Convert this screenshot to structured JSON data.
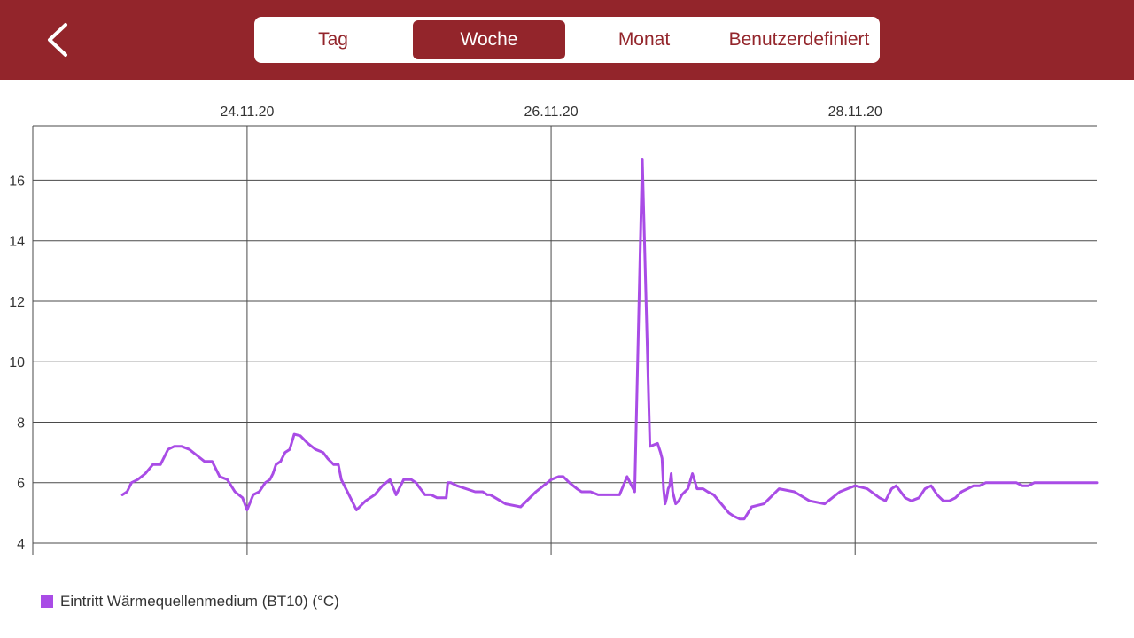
{
  "header": {
    "tabs": [
      {
        "label": "Tag",
        "active": false
      },
      {
        "label": "Woche",
        "active": true
      },
      {
        "label": "Monat",
        "active": false
      },
      {
        "label": "Benutzerdefiniert",
        "active": false
      }
    ],
    "back_icon": "chevron-left-icon"
  },
  "colors": {
    "header_bg": "#93252b",
    "series": "#a94ce6",
    "grid": "#4a4a4a"
  },
  "chart_data": {
    "type": "line",
    "title": "",
    "xlabel": "",
    "ylabel": "",
    "x_tick_labels": [
      "24.11.20",
      "26.11.20",
      "28.11.20"
    ],
    "x_tick_days": [
      1,
      3,
      5
    ],
    "xlim_days": [
      -0.41,
      6.59
    ],
    "ylim": [
      4,
      17.8
    ],
    "y_ticks": [
      4,
      6,
      8,
      10,
      12,
      14,
      16
    ],
    "grid": true,
    "legend_position": "bottom-left",
    "series": [
      {
        "name": "Eintritt Wärmequellenmedium (BT10) (°C)",
        "x_days": [
          0.18,
          0.21,
          0.24,
          0.28,
          0.33,
          0.38,
          0.43,
          0.48,
          0.52,
          0.57,
          0.62,
          0.67,
          0.72,
          0.77,
          0.82,
          0.87,
          0.92,
          0.97,
          1.0,
          1.04,
          1.08,
          1.12,
          1.15,
          1.17,
          1.19,
          1.22,
          1.25,
          1.28,
          1.31,
          1.35,
          1.4,
          1.45,
          1.5,
          1.53,
          1.57,
          1.6,
          1.62,
          1.64,
          1.67,
          1.72,
          1.78,
          1.84,
          1.89,
          1.94,
          1.98,
          2.03,
          2.05,
          2.08,
          2.11,
          2.14,
          2.17,
          2.21,
          2.25,
          2.28,
          2.31,
          2.32,
          2.34,
          2.38,
          2.44,
          2.5,
          2.55,
          2.58,
          2.6,
          2.7,
          2.8,
          2.9,
          3.0,
          3.05,
          3.08,
          3.12,
          3.17,
          3.2,
          3.26,
          3.31,
          3.35,
          3.4,
          3.45,
          3.5,
          3.55,
          3.6,
          3.65,
          3.7,
          3.72,
          3.73,
          3.74,
          3.75,
          3.76,
          3.77,
          3.78,
          3.79,
          3.8,
          3.82,
          3.84,
          3.86,
          3.9,
          3.93,
          3.96,
          3.98,
          4.0,
          4.03,
          4.07,
          4.12,
          4.17,
          4.2,
          4.22,
          4.24,
          4.27,
          4.32,
          4.4,
          4.5,
          4.6,
          4.7,
          4.8,
          4.9,
          5.0,
          5.08,
          5.16,
          5.2,
          5.24,
          5.27,
          5.3,
          5.33,
          5.37,
          5.42,
          5.46,
          5.5,
          5.54,
          5.58,
          5.62,
          5.66,
          5.7,
          5.74,
          5.78,
          5.82,
          5.86,
          5.9,
          5.94,
          5.98,
          6.02,
          6.06,
          6.1,
          6.14,
          6.18,
          6.22,
          6.26,
          6.3,
          6.4,
          6.5,
          6.59
        ],
        "y": [
          5.6,
          5.7,
          6.0,
          6.1,
          6.3,
          6.6,
          6.6,
          7.1,
          7.2,
          7.2,
          7.1,
          6.9,
          6.7,
          6.7,
          6.2,
          6.1,
          5.7,
          5.5,
          5.1,
          5.6,
          5.7,
          6.0,
          6.1,
          6.3,
          6.6,
          6.7,
          7.0,
          7.1,
          7.6,
          7.55,
          7.3,
          7.1,
          7.0,
          6.8,
          6.6,
          6.6,
          6.1,
          5.9,
          5.6,
          5.1,
          5.4,
          5.6,
          5.9,
          6.1,
          5.6,
          6.1,
          6.1,
          6.1,
          6.0,
          5.8,
          5.6,
          5.6,
          5.5,
          5.5,
          5.5,
          6.0,
          6.0,
          5.9,
          5.8,
          5.7,
          5.7,
          5.6,
          5.6,
          5.3,
          5.2,
          5.7,
          6.1,
          6.2,
          6.2,
          6.0,
          5.8,
          5.7,
          5.7,
          5.6,
          5.6,
          5.6,
          5.6,
          6.2,
          5.7,
          16.7,
          7.2,
          7.3,
          7.0,
          6.8,
          5.8,
          5.3,
          5.5,
          5.8,
          5.9,
          6.3,
          5.7,
          5.3,
          5.4,
          5.6,
          5.8,
          6.3,
          5.8,
          5.8,
          5.8,
          5.7,
          5.6,
          5.3,
          5.0,
          4.9,
          4.85,
          4.8,
          4.8,
          5.2,
          5.3,
          5.8,
          5.7,
          5.4,
          5.3,
          5.7,
          5.9,
          5.8,
          5.5,
          5.4,
          5.8,
          5.9,
          5.7,
          5.5,
          5.4,
          5.5,
          5.8,
          5.9,
          5.6,
          5.4,
          5.4,
          5.5,
          5.7,
          5.8,
          5.9,
          5.9,
          6.0,
          6.0,
          6.0,
          6.0,
          6.0,
          6.0,
          5.9,
          5.9,
          6.0,
          6.0,
          6.0,
          6.0,
          6.0,
          6.0,
          6.0
        ]
      }
    ]
  }
}
